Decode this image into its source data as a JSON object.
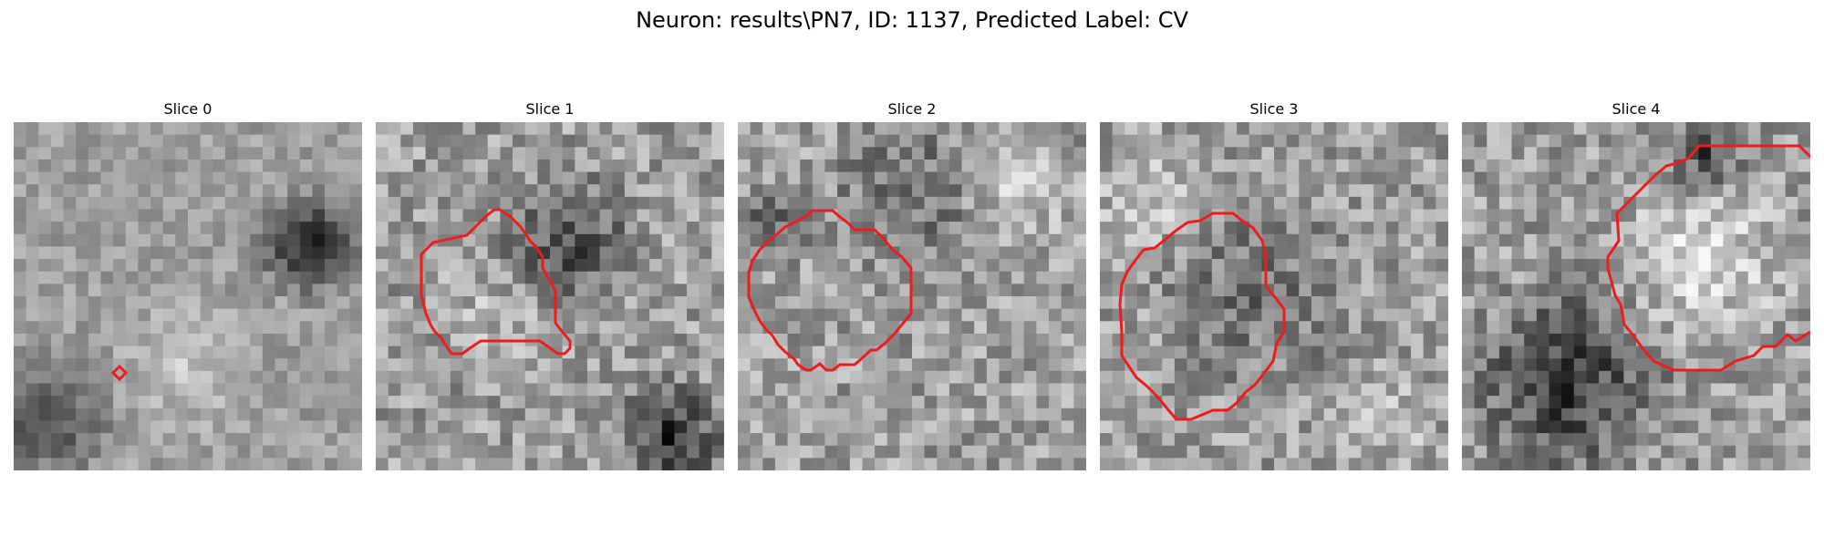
{
  "figure": {
    "title": "Neuron: results\\PN7, ID: 1137, Predicted Label: CV"
  },
  "panels": [
    {
      "title": "Slice 0",
      "contour": "small diamond marker lower-left"
    },
    {
      "title": "Slice 1",
      "contour": "irregular outline center-left"
    },
    {
      "title": "Slice 2",
      "contour": "large octagonal outline centered"
    },
    {
      "title": "Slice 3",
      "contour": "large outline center-left"
    },
    {
      "title": "Slice 4",
      "contour": "outline upper-right extending off edge"
    }
  ],
  "colors": {
    "contour": "#ee1c1c",
    "background": "#ffffff"
  }
}
